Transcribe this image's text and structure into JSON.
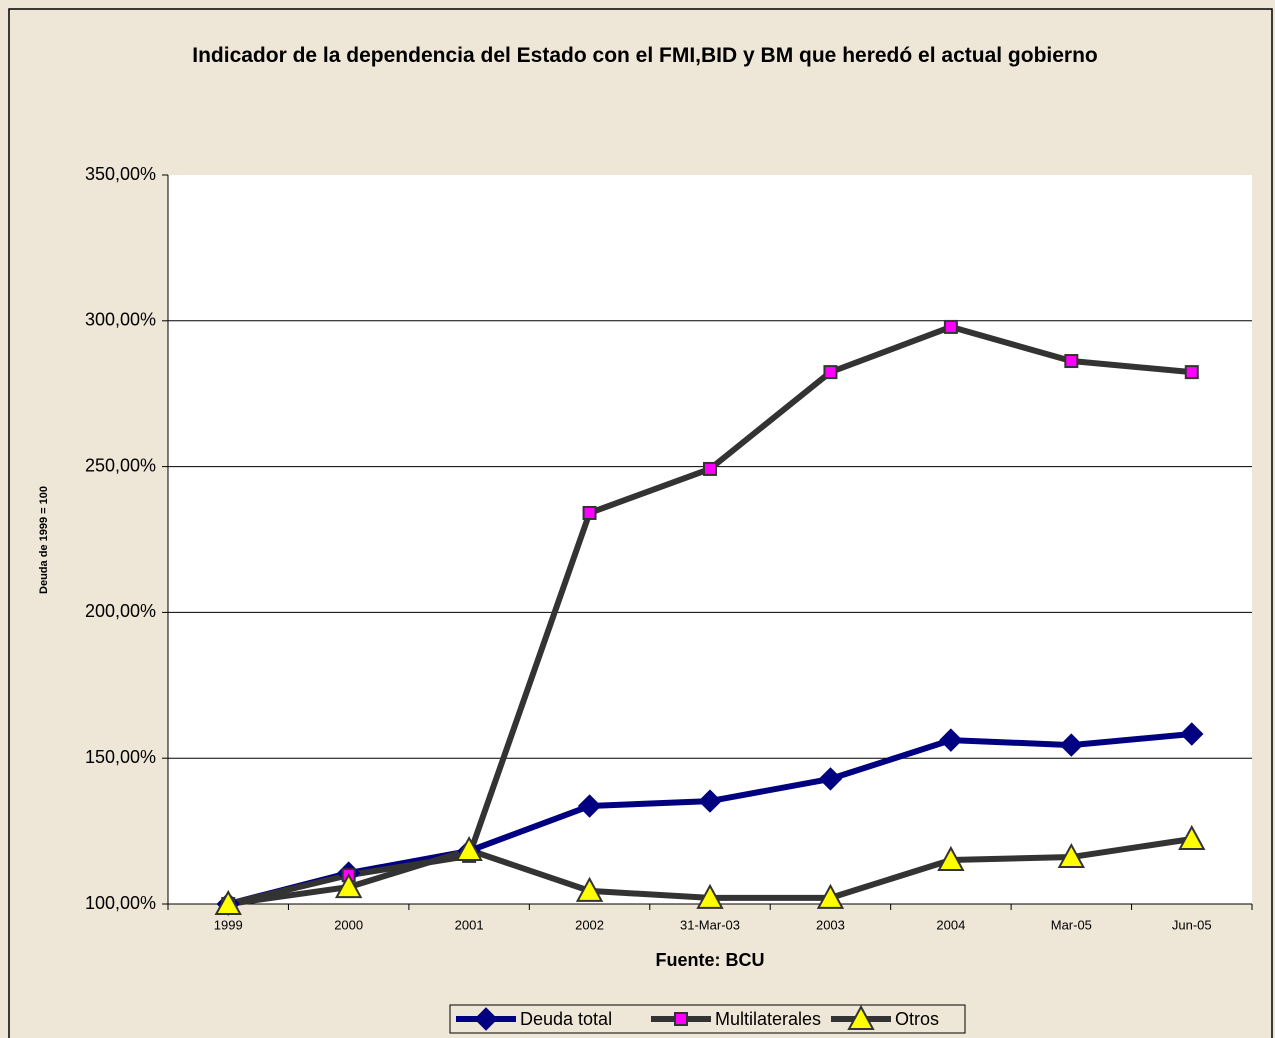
{
  "chart_data": {
    "type": "line",
    "title": "Indicador de la dependencia del Estado con el FMI,BID y BM que heredó el actual gobierno",
    "y_label": "Deuda de 1999 = 100",
    "x_label": "Fuente: BCU",
    "categories": [
      "1999",
      "2000",
      "2001",
      "2002",
      "31-Mar-03",
      "2003",
      "2004",
      "Mar-05",
      "Jun-05"
    ],
    "series": [
      {
        "name": "Deuda total",
        "color": "#000080",
        "marker": "diamond",
        "marker_color": "#000080",
        "values": [
          100,
          110.6,
          118.2,
          133.6,
          135.3,
          142.9,
          156.2,
          154.5,
          158.3
        ]
      },
      {
        "name": "Multilaterales",
        "color": "#333333",
        "marker": "square",
        "marker_color": "#FF00FF",
        "values": [
          100,
          109.9,
          116.5,
          234.1,
          249.2,
          282.4,
          297.9,
          286.2,
          282.4
        ]
      },
      {
        "name": "Otros",
        "color": "#333333",
        "marker": "triangle",
        "marker_color": "#FFFF00",
        "values": [
          100,
          105.8,
          118.5,
          104.5,
          102.1,
          102.1,
          115.1,
          116.1,
          122.3
        ]
      }
    ],
    "ylim": [
      100,
      350
    ],
    "yticks": [
      {
        "value": 100,
        "label": "100,00%"
      },
      {
        "value": 150,
        "label": "150,00%"
      },
      {
        "value": 200,
        "label": "200,00%"
      },
      {
        "value": 250,
        "label": "250,00%"
      },
      {
        "value": 300,
        "label": "300,00%"
      },
      {
        "value": 350,
        "label": "350,00%"
      }
    ],
    "grid": true,
    "legend": "bottom"
  }
}
